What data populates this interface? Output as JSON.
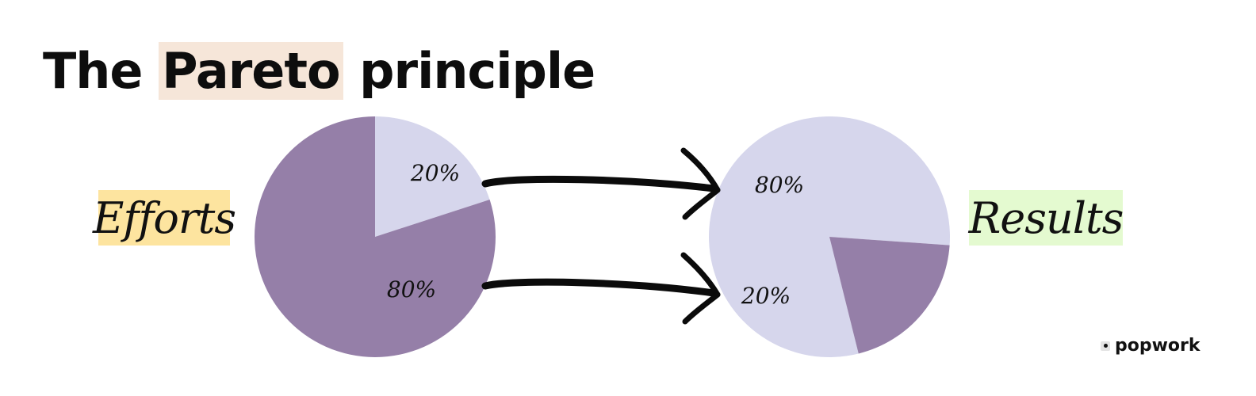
{
  "title": {
    "before": "The ",
    "highlight": "Pareto",
    "after": " principle",
    "highlight_color": "#f6e6d9"
  },
  "labels": {
    "efforts": "Efforts",
    "results": "Results",
    "efforts_bg": "#fde49f",
    "results_bg": "#e4fad0"
  },
  "chart_data": [
    {
      "type": "pie",
      "slices": [
        {
          "label": "20%",
          "value": 20,
          "color": "#d6d6ec"
        },
        {
          "label": "80%",
          "value": 80,
          "color": "#957fa8"
        }
      ]
    },
    {
      "type": "pie",
      "slices": [
        {
          "label": "80%",
          "value": 80,
          "color": "#d6d6ec"
        },
        {
          "label": "20%",
          "value": 20,
          "color": "#957fa8"
        }
      ]
    }
  ],
  "brand": {
    "name": "popwork",
    "icon": "popwork-logo-icon"
  }
}
